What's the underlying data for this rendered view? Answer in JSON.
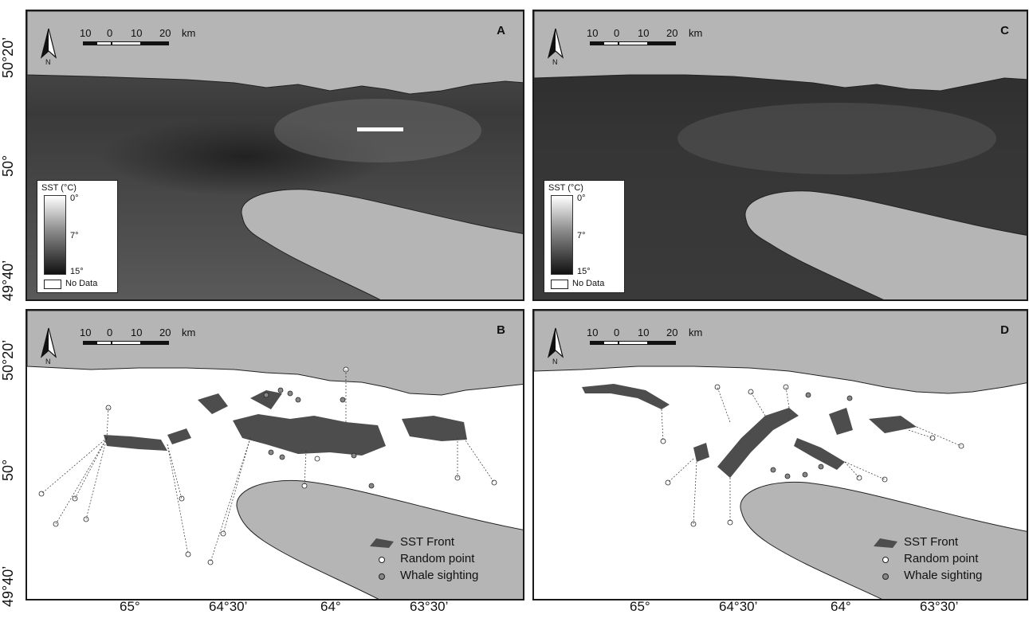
{
  "panels": [
    {
      "id": "A",
      "type": "sst"
    },
    {
      "id": "C",
      "type": "sst"
    },
    {
      "id": "B",
      "type": "front"
    },
    {
      "id": "D",
      "type": "front"
    }
  ],
  "scale_bar": {
    "labels": [
      "10",
      "0",
      "10",
      "20"
    ],
    "unit": "km"
  },
  "north_arrow": {
    "label": "N"
  },
  "sst_legend": {
    "title": "SST (°C)",
    "ticks": [
      "0°",
      "7°",
      "15°"
    ],
    "no_data": "No Data"
  },
  "front_legend": {
    "front": "SST Front",
    "random": "Random point",
    "whale": "Whale sighting"
  },
  "axes": {
    "lat_labels": [
      "50°20’",
      "50°",
      "49°40’"
    ],
    "lon_labels": [
      "65°",
      "64°30’",
      "64°",
      "63°30’"
    ]
  },
  "colors": {
    "land": "#b5b5b5",
    "front": "#4d4d4d",
    "water": "#ffffff",
    "sea_dark": "#2e2e2e"
  }
}
